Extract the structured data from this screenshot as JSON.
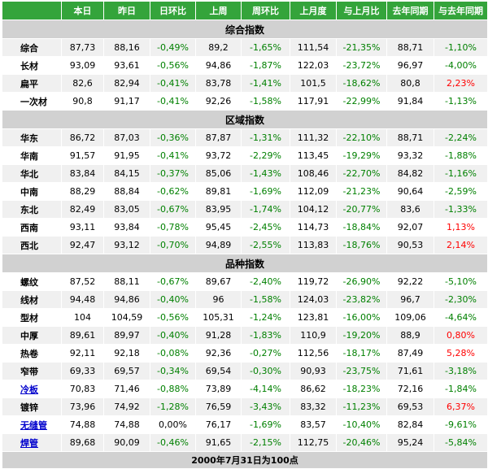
{
  "headers": [
    "",
    "本日",
    "昨日",
    "日环比",
    "上周",
    "周环比",
    "上月度",
    "与上月比",
    "去年同期",
    "与去年同期"
  ],
  "colors": {
    "header_bg": "#34a43b",
    "section_bg": "#d1d1d1",
    "positive": "#ff0000",
    "negative": "#008000",
    "link": "#0000cc"
  },
  "sections": [
    {
      "title": "综合指数",
      "rows": [
        {
          "name": "综合",
          "link": false,
          "values": [
            "87,73",
            "88,16",
            "-0,49%",
            "89,2",
            "-1,65%",
            "111,54",
            "-21,35%",
            "88,71",
            "-1,10%"
          ]
        },
        {
          "name": "长材",
          "link": false,
          "values": [
            "93,09",
            "93,61",
            "-0,56%",
            "94,86",
            "-1,87%",
            "122,03",
            "-23,72%",
            "96,97",
            "-4,00%"
          ]
        },
        {
          "name": "扁平",
          "link": false,
          "values": [
            "82,6",
            "82,94",
            "-0,41%",
            "83,78",
            "-1,41%",
            "101,5",
            "-18,62%",
            "80,8",
            "2,23%"
          ]
        },
        {
          "name": "一次材",
          "link": false,
          "values": [
            "90,8",
            "91,17",
            "-0,41%",
            "92,26",
            "-1,58%",
            "117,91",
            "-22,99%",
            "91,84",
            "-1,13%"
          ]
        }
      ]
    },
    {
      "title": "区域指数",
      "rows": [
        {
          "name": "华东",
          "link": false,
          "values": [
            "86,72",
            "87,03",
            "-0,36%",
            "87,87",
            "-1,31%",
            "111,32",
            "-22,10%",
            "88,71",
            "-2,24%"
          ]
        },
        {
          "name": "华南",
          "link": false,
          "values": [
            "91,57",
            "91,95",
            "-0,41%",
            "93,72",
            "-2,29%",
            "113,45",
            "-19,29%",
            "93,32",
            "-1,88%"
          ]
        },
        {
          "name": "华北",
          "link": false,
          "values": [
            "83,84",
            "84,15",
            "-0,37%",
            "85,06",
            "-1,43%",
            "108,46",
            "-22,70%",
            "84,82",
            "-1,16%"
          ]
        },
        {
          "name": "中南",
          "link": false,
          "values": [
            "88,29",
            "88,84",
            "-0,62%",
            "89,81",
            "-1,69%",
            "112,09",
            "-21,23%",
            "90,64",
            "-2,59%"
          ]
        },
        {
          "name": "东北",
          "link": false,
          "values": [
            "82,49",
            "83,05",
            "-0,67%",
            "83,95",
            "-1,74%",
            "104,12",
            "-20,77%",
            "83,6",
            "-1,33%"
          ]
        },
        {
          "name": "西南",
          "link": false,
          "values": [
            "93,11",
            "93,84",
            "-0,78%",
            "95,45",
            "-2,45%",
            "114,73",
            "-18,84%",
            "92,07",
            "1,13%"
          ]
        },
        {
          "name": "西北",
          "link": false,
          "values": [
            "92,47",
            "93,12",
            "-0,70%",
            "94,89",
            "-2,55%",
            "113,83",
            "-18,76%",
            "90,53",
            "2,14%"
          ]
        }
      ]
    },
    {
      "title": "品种指数",
      "rows": [
        {
          "name": "螺纹",
          "link": false,
          "values": [
            "87,52",
            "88,11",
            "-0,67%",
            "89,67",
            "-2,40%",
            "119,72",
            "-26,90%",
            "92,22",
            "-5,10%"
          ]
        },
        {
          "name": "线材",
          "link": false,
          "values": [
            "94,48",
            "94,86",
            "-0,40%",
            "96",
            "-1,58%",
            "124,03",
            "-23,82%",
            "96,7",
            "-2,30%"
          ]
        },
        {
          "name": "型材",
          "link": false,
          "values": [
            "104",
            "104,59",
            "-0,56%",
            "105,31",
            "-1,24%",
            "123,81",
            "-16,00%",
            "109,06",
            "-4,64%"
          ]
        },
        {
          "name": "中厚",
          "link": false,
          "values": [
            "89,61",
            "89,97",
            "-0,40%",
            "91,28",
            "-1,83%",
            "110,9",
            "-19,20%",
            "88,9",
            "0,80%"
          ]
        },
        {
          "name": "热卷",
          "link": false,
          "values": [
            "92,11",
            "92,18",
            "-0,08%",
            "92,36",
            "-0,27%",
            "112,56",
            "-18,17%",
            "87,49",
            "5,28%"
          ]
        },
        {
          "name": "窄带",
          "link": false,
          "values": [
            "69,33",
            "69,57",
            "-0,34%",
            "69,54",
            "-0,30%",
            "90,93",
            "-23,75%",
            "71,61",
            "-3,18%"
          ]
        },
        {
          "name": "冷板",
          "link": true,
          "values": [
            "70,83",
            "71,46",
            "-0,88%",
            "73,89",
            "-4,14%",
            "86,62",
            "-18,23%",
            "72,16",
            "-1,84%"
          ]
        },
        {
          "name": "镀锌",
          "link": false,
          "values": [
            "73,96",
            "74,92",
            "-1,28%",
            "76,59",
            "-3,43%",
            "83,32",
            "-11,23%",
            "69,53",
            "6,37%"
          ]
        },
        {
          "name": "无缝管",
          "link": true,
          "values": [
            "74,88",
            "74,88",
            "0,00%",
            "76,17",
            "-1,69%",
            "83,57",
            "-10,40%",
            "82,84",
            "-9,61%"
          ]
        },
        {
          "name": "焊管",
          "link": true,
          "values": [
            "89,68",
            "90,09",
            "-0,46%",
            "91,65",
            "-2,15%",
            "112,75",
            "-20,46%",
            "95,24",
            "-5,84%"
          ]
        }
      ]
    }
  ],
  "footer": "2000年7月31日为100点"
}
